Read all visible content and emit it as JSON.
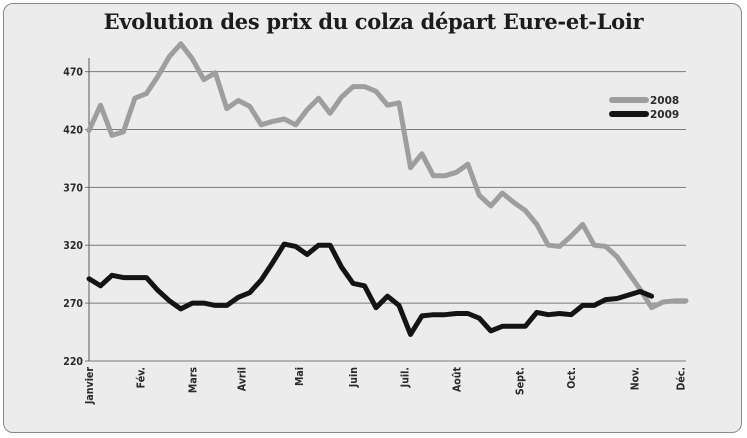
{
  "chart_data": {
    "type": "line",
    "title": "Evolution des prix du colza départ Eure-et-Loir",
    "xlabel": "",
    "ylabel": "",
    "ylim": [
      220,
      480
    ],
    "yticks": [
      220,
      270,
      320,
      370,
      420,
      470
    ],
    "xlim": [
      0,
      52
    ],
    "month_labels": [
      {
        "label": "Janvier",
        "week": 0
      },
      {
        "label": "Fév.",
        "week": 4.5
      },
      {
        "label": "Mars",
        "week": 9
      },
      {
        "label": "Avril",
        "week": 13.3
      },
      {
        "label": "Mai",
        "week": 18.3
      },
      {
        "label": "Juin",
        "week": 23
      },
      {
        "label": "Juil.",
        "week": 27.5
      },
      {
        "label": "Août",
        "week": 32
      },
      {
        "label": "Sept.",
        "week": 37.5
      },
      {
        "label": "Oct.",
        "week": 42
      },
      {
        "label": "Nov.",
        "week": 47.5
      },
      {
        "label": "Déc.",
        "week": 51.5
      }
    ],
    "grid": true,
    "legend_position": "top-right",
    "series": [
      {
        "name": "2008",
        "color": "#9e9e9e",
        "x": [
          0,
          1,
          2,
          3,
          4,
          5,
          6,
          7,
          8,
          9,
          10,
          11,
          12,
          13,
          14,
          15,
          16,
          17,
          18,
          19,
          20,
          21,
          22,
          23,
          24,
          25,
          26,
          27,
          28,
          29,
          30,
          31,
          32,
          33,
          34,
          35,
          36,
          37,
          38,
          39,
          40,
          41,
          42,
          43,
          44,
          45,
          46,
          47,
          48,
          49,
          50,
          51,
          52
        ],
        "values": [
          419,
          441,
          415,
          418,
          447,
          451,
          466,
          483,
          494,
          481,
          463,
          469,
          438,
          445,
          440,
          424,
          427,
          429,
          424,
          437,
          447,
          434,
          448,
          457,
          457,
          453,
          441,
          443,
          387,
          399,
          380,
          380,
          383,
          390,
          363,
          354,
          365,
          357,
          350,
          338,
          320,
          319,
          328,
          338,
          320,
          319,
          310,
          296,
          282,
          266,
          271,
          272,
          272
        ]
      },
      {
        "name": "2009",
        "color": "#141414",
        "x": [
          0,
          1,
          2,
          3,
          4,
          5,
          6,
          7,
          8,
          9,
          10,
          11,
          12,
          13,
          14,
          15,
          16,
          17,
          18,
          19,
          20,
          21,
          22,
          23,
          24,
          25,
          26,
          27,
          28,
          29,
          30,
          31,
          32,
          33,
          34,
          35,
          36,
          37,
          38,
          39,
          40,
          41,
          42,
          43,
          44,
          45,
          46,
          47,
          48,
          49
        ],
        "values": [
          291,
          285,
          294,
          292,
          292,
          292,
          281,
          272,
          265,
          270,
          270,
          268,
          268,
          275,
          279,
          290,
          305,
          321,
          319,
          312,
          320,
          320,
          301,
          287,
          285,
          266,
          276,
          268,
          243,
          259,
          260,
          260,
          261,
          261,
          257,
          246,
          250,
          250,
          250,
          262,
          260,
          261,
          260,
          268,
          268,
          273,
          274,
          277,
          280,
          276
        ]
      }
    ]
  }
}
